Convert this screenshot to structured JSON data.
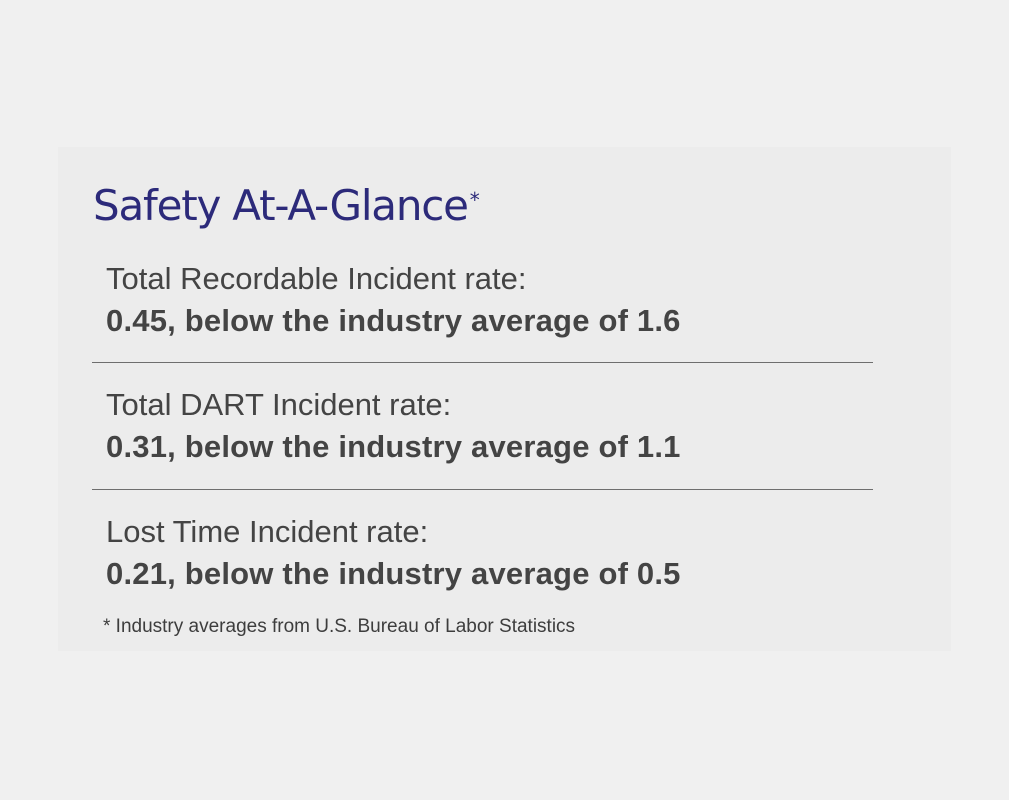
{
  "header": {
    "title": "Safety At-A-Glance",
    "title_marker": "*"
  },
  "stats": [
    {
      "label": "Total Recordable Incident rate:",
      "value": "0.45, below the industry average of 1.6"
    },
    {
      "label": "Total DART Incident rate:",
      "value": "0.31, below the industry average of 1.1"
    },
    {
      "label": "Lost Time Incident rate:",
      "value": "0.21, below the industry average of 0.5"
    }
  ],
  "footnote": "* Industry averages from U.S. Bureau of Labor Statistics",
  "colors": {
    "title": "#2c2a7a",
    "text": "#444444",
    "divider": "#6e6e6e",
    "background": "#f0f0f0"
  }
}
